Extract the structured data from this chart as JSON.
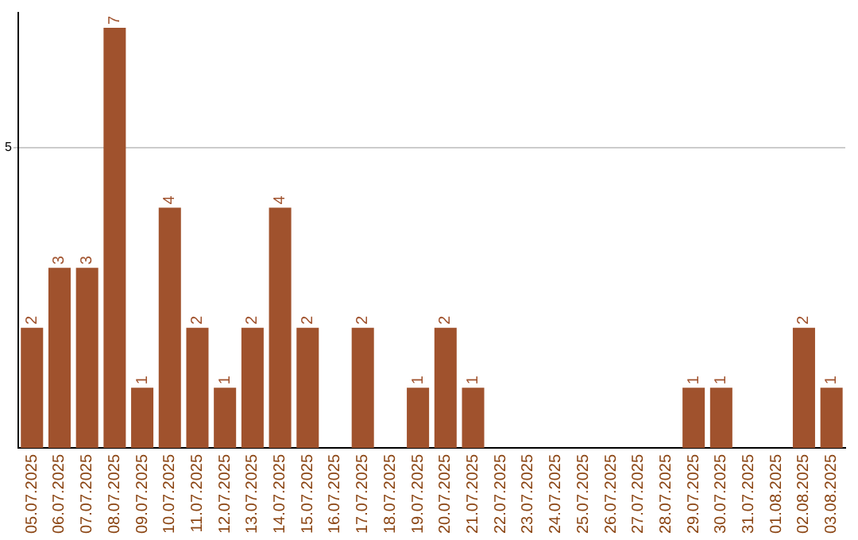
{
  "chart_data": {
    "type": "bar",
    "categories": [
      "05.07.2025",
      "06.07.2025",
      "07.07.2025",
      "08.07.2025",
      "09.07.2025",
      "10.07.2025",
      "11.07.2025",
      "12.07.2025",
      "13.07.2025",
      "14.07.2025",
      "15.07.2025",
      "16.07.2025",
      "17.07.2025",
      "18.07.2025",
      "19.07.2025",
      "20.07.2025",
      "21.07.2025",
      "22.07.2025",
      "23.07.2025",
      "24.07.2025",
      "25.07.2025",
      "26.07.2025",
      "27.07.2025",
      "28.07.2025",
      "29.07.2025",
      "30.07.2025",
      "31.07.2025",
      "01.08.2025",
      "02.08.2025",
      "03.08.2025"
    ],
    "values": [
      2,
      3,
      3,
      7,
      1,
      4,
      2,
      1,
      2,
      4,
      2,
      0,
      2,
      0,
      1,
      2,
      1,
      0,
      0,
      0,
      0,
      0,
      0,
      0,
      1,
      1,
      0,
      0,
      2,
      1
    ],
    "value_labels": [
      "2",
      "3",
      "3",
      "7",
      "1",
      "4",
      "2",
      "1",
      "2",
      "4",
      "2",
      null,
      "2",
      null,
      "1",
      "2",
      "1",
      null,
      null,
      null,
      null,
      null,
      null,
      null,
      "1",
      "1",
      null,
      null,
      "2",
      "1"
    ],
    "color": "#a0522d",
    "ylim": [
      0,
      7.25
    ],
    "yticks": [
      5
    ],
    "grid": "y"
  }
}
